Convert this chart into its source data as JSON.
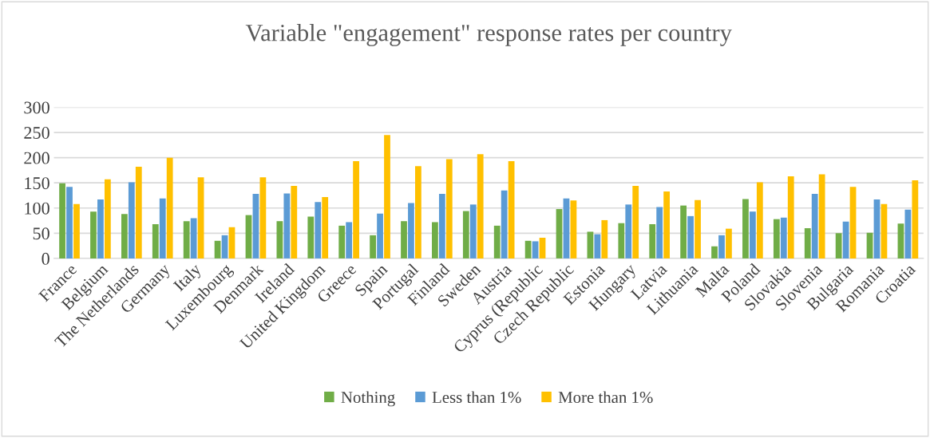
{
  "chart_data": {
    "type": "bar",
    "title": "Variable \"engagement\" response rates per country",
    "categories": [
      "France",
      "Belgium",
      "The Netherlands",
      "Germany",
      "Italy",
      "Luxembourg",
      "Denmark",
      "Ireland",
      "United Kingdom",
      "Greece",
      "Spain",
      "Portugal",
      "Finland",
      "Sweden",
      "Austria",
      "Cyprus (Republic",
      "Czech Republic",
      "Estonia",
      "Hungary",
      "Latvia",
      "Lithuania",
      "Malta",
      "Poland",
      "Slovakia",
      "Slovenia",
      "Bulgaria",
      "Romania",
      "Croatia"
    ],
    "series": [
      {
        "name": "Nothing",
        "color": "#70ad47",
        "values": [
          149,
          93,
          88,
          68,
          74,
          35,
          86,
          74,
          83,
          65,
          46,
          74,
          72,
          94,
          65,
          35,
          98,
          53,
          70,
          68,
          105,
          24,
          118,
          78,
          60,
          50,
          51,
          69
        ]
      },
      {
        "name": "Less than 1%",
        "color": "#5b9bd5",
        "values": [
          142,
          117,
          151,
          119,
          80,
          46,
          128,
          129,
          112,
          72,
          89,
          110,
          128,
          107,
          135,
          34,
          119,
          48,
          107,
          102,
          84,
          46,
          93,
          81,
          128,
          73,
          117,
          97
        ]
      },
      {
        "name": "More than 1%",
        "color": "#ffc000",
        "values": [
          108,
          157,
          182,
          200,
          161,
          62,
          161,
          144,
          122,
          193,
          245,
          183,
          197,
          207,
          193,
          41,
          115,
          76,
          144,
          133,
          116,
          59,
          151,
          163,
          167,
          142,
          108,
          155
        ]
      }
    ],
    "ylim": [
      0,
      300
    ],
    "yticks": [
      0,
      50,
      100,
      150,
      200,
      250,
      300
    ],
    "grid": "y",
    "legend": "bottom"
  }
}
